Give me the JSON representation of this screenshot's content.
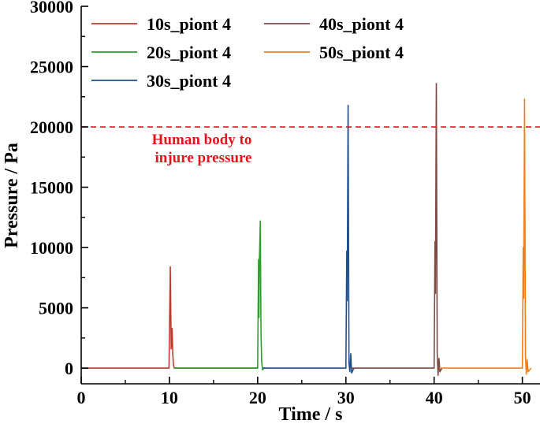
{
  "chart_data": {
    "type": "line",
    "xlabel": "Time / s",
    "ylabel": "Pressure / Pa",
    "xlim": [
      0,
      52
    ],
    "ylim": [
      -1300,
      30000
    ],
    "xticks": [
      0,
      10,
      20,
      30,
      40,
      50
    ],
    "yticks": [
      0,
      5000,
      10000,
      15000,
      20000,
      25000,
      30000
    ],
    "xtick_labels": [
      "0",
      "10",
      "20",
      "30",
      "40",
      "50"
    ],
    "ytick_labels": [
      "0",
      "5000",
      "10000",
      "15000",
      "20000",
      "25000",
      "30000"
    ],
    "grid": false,
    "legend_position": "top",
    "reference_line": {
      "y": 20000,
      "color": "#e8141b",
      "style": "dashed"
    },
    "annotation": {
      "lines": [
        "Human body to",
        "injure pressure"
      ],
      "color": "#e8141b"
    },
    "series": [
      {
        "name": "10s_piont 4",
        "color": "#c0392b",
        "x": [
          0,
          9.95,
          10.1,
          10.2,
          10.3,
          10.38,
          10.45,
          10.55,
          10.7,
          20.0
        ],
        "y": [
          0,
          0,
          8400,
          1600,
          3300,
          1200,
          300,
          0,
          0,
          0
        ]
      },
      {
        "name": "20s_piont 4",
        "color": "#2ca02c",
        "x": [
          10.5,
          20.0,
          20.1,
          20.15,
          20.2,
          20.3,
          20.38,
          20.45,
          20.55,
          20.7,
          20.9
        ],
        "y": [
          0,
          0,
          9000,
          4200,
          9000,
          12200,
          3000,
          600,
          -150,
          0,
          0
        ]
      },
      {
        "name": "30s_piont 4",
        "color": "#1f4e8c",
        "x": [
          20.6,
          30.0,
          30.1,
          30.15,
          30.25,
          30.35,
          30.45,
          30.55,
          30.65,
          30.9
        ],
        "y": [
          0,
          0,
          9700,
          5600,
          21800,
          400,
          -300,
          1200,
          -400,
          0
        ]
      },
      {
        "name": "40s_piont 4",
        "color": "#7b4a44",
        "x": [
          30.6,
          40.0,
          40.1,
          40.15,
          40.25,
          40.35,
          40.45,
          40.55,
          40.65,
          40.9
        ],
        "y": [
          0,
          0,
          10500,
          6200,
          23600,
          1100,
          -600,
          800,
          -300,
          0
        ]
      },
      {
        "name": "50s_piont 4",
        "color": "#f07f1e",
        "x": [
          40.6,
          50.0,
          50.1,
          50.15,
          50.25,
          50.35,
          50.45,
          50.55,
          50.65,
          51.0
        ],
        "y": [
          0,
          0,
          10000,
          5800,
          22300,
          1000,
          -500,
          700,
          -300,
          0
        ]
      }
    ]
  }
}
